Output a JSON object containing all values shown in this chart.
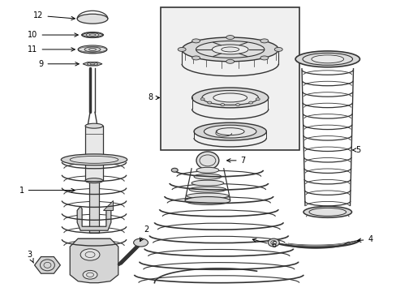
{
  "bg_color": "#ffffff",
  "lc": "#333333",
  "tc": "#000000",
  "box_fill": "#eeeeee",
  "figsize": [
    4.89,
    3.6
  ],
  "dpi": 100
}
